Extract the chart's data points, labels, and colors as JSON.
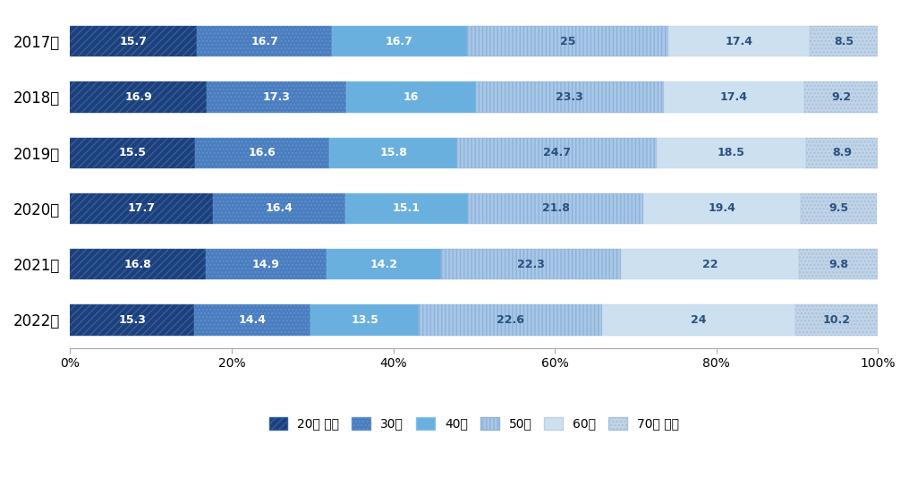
{
  "years": [
    "2017년",
    "2018년",
    "2019년",
    "2020년",
    "2021년",
    "2022년"
  ],
  "categories": [
    "20대 이하",
    "30대",
    "40대",
    "50대",
    "60대",
    "70대 이상"
  ],
  "data": [
    [
      15.7,
      16.7,
      16.7,
      25.0,
      17.4,
      8.5
    ],
    [
      16.9,
      17.3,
      16.0,
      23.3,
      17.4,
      9.2
    ],
    [
      15.5,
      16.6,
      15.8,
      24.7,
      18.5,
      8.9
    ],
    [
      17.7,
      16.4,
      15.1,
      21.8,
      19.4,
      9.5
    ],
    [
      16.8,
      14.9,
      14.2,
      22.3,
      22.0,
      9.8
    ],
    [
      15.3,
      14.4,
      13.5,
      22.6,
      24.0,
      10.2
    ]
  ],
  "bar_colors": [
    "#1e3f7a",
    "#4a7dc0",
    "#6ab0de",
    "#a8c8e8",
    "#cde0f0",
    "#c0d4e8"
  ],
  "hatch_patterns": [
    "////",
    "....",
    "====",
    "||||",
    "",
    "...."
  ],
  "hatch_edgecolors": [
    "#3060a0",
    "#6090c8",
    "#88c0e8",
    "#90b0d8",
    "#b8d0e8",
    "#a8c0d8"
  ],
  "text_colors": [
    "white",
    "white",
    "white",
    "#2a5080",
    "#2a5080",
    "#2a5080"
  ],
  "bg_color": "#ffffff",
  "bar_height": 0.55,
  "figsize": [
    10.16,
    5.63
  ],
  "dpi": 100,
  "legend_fontsize": 10,
  "tick_fontsize": 10,
  "label_fontsize": 9
}
